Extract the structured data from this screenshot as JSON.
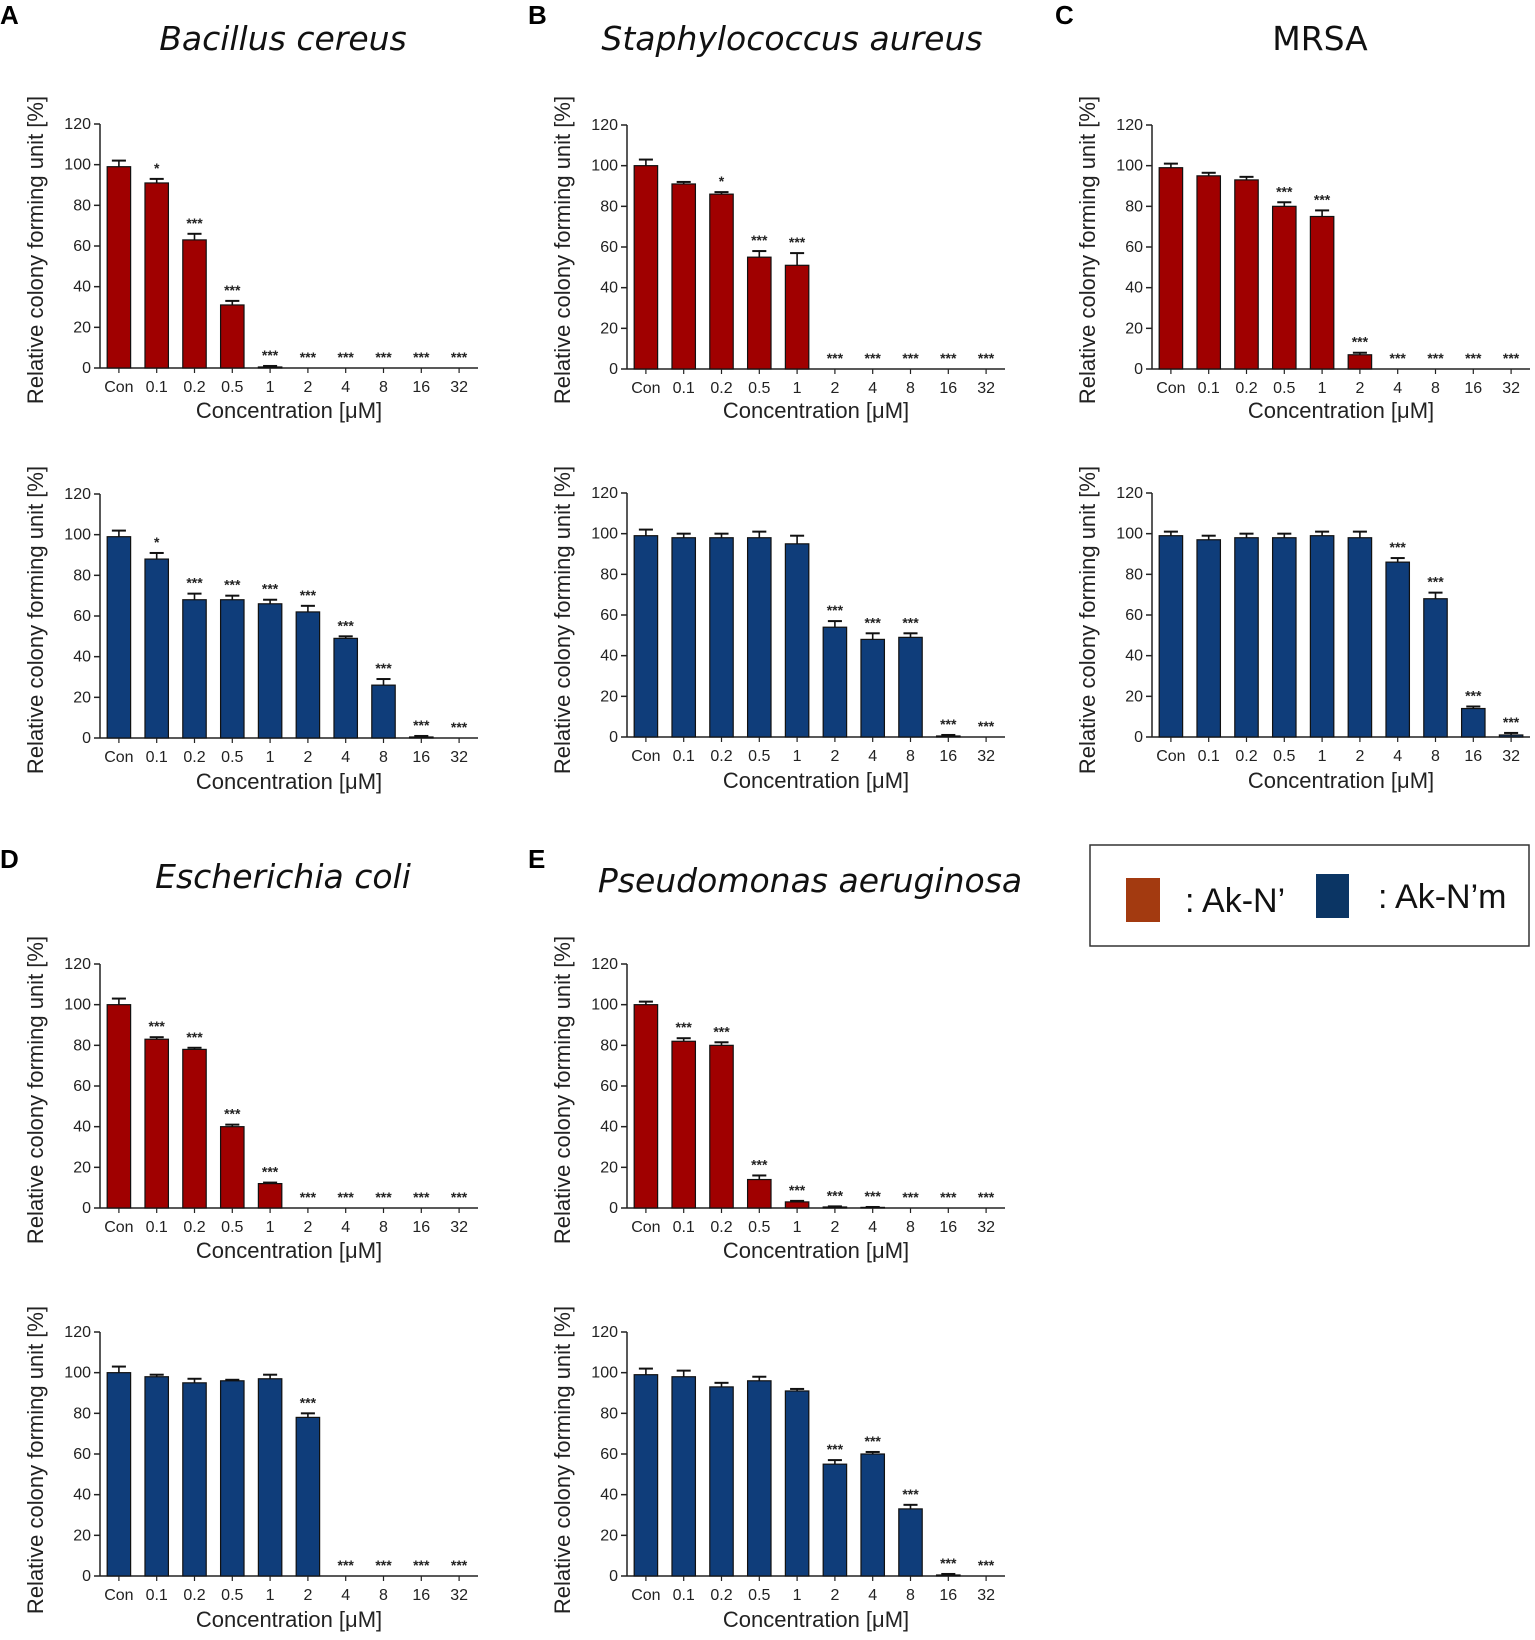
{
  "colors": {
    "ak_n_prime": "#A00000",
    "ak_n_prime_m": "#0F3D7A",
    "legend_red": "#A33A10",
    "legend_blue": "#0B3564"
  },
  "legend": {
    "red_label": ": Ak-N’",
    "blue_label": ": Ak-N’m"
  },
  "panels": [
    {
      "letter": "A",
      "title": "Bacillus cereus",
      "italic": true
    },
    {
      "letter": "B",
      "title": "Staphylococcus aureus",
      "italic": true
    },
    {
      "letter": "C",
      "title": "MRSA",
      "italic": false
    },
    {
      "letter": "D",
      "title": "Escherichia coli",
      "italic": true
    },
    {
      "letter": "E",
      "title": "Pseudomonas aeruginosa",
      "italic": true
    }
  ],
  "chart_data": [
    {
      "type": "bar",
      "panel": "A",
      "series_name": "Ak-N’",
      "color_key": "ak_n_prime",
      "categories": [
        "Con",
        "0.1",
        "0.2",
        "0.5",
        "1",
        "2",
        "4",
        "8",
        "16",
        "32"
      ],
      "values": [
        99,
        91,
        63,
        31,
        0.5,
        0,
        0,
        0,
        0,
        0
      ],
      "errors": [
        3,
        2,
        3,
        2,
        0.5,
        0,
        0,
        0,
        0,
        0
      ],
      "significance": [
        "",
        "*",
        "***",
        "***",
        "***",
        "***",
        "***",
        "***",
        "***",
        "***"
      ],
      "xlabel": "Concentration [μM]",
      "ylabel": "Relative colony forming unit [%]",
      "ylim": [
        0,
        120
      ],
      "yticks": [
        "0",
        "20",
        "40",
        "60",
        "80",
        "100",
        "120"
      ]
    },
    {
      "type": "bar",
      "panel": "A",
      "series_name": "Ak-N’m",
      "color_key": "ak_n_prime_m",
      "categories": [
        "Con",
        "0.1",
        "0.2",
        "0.5",
        "1",
        "2",
        "4",
        "8",
        "16",
        "32"
      ],
      "values": [
        99,
        88,
        68,
        68,
        66,
        62,
        49,
        26,
        0.5,
        0
      ],
      "errors": [
        3,
        3,
        3,
        2,
        2,
        3,
        1,
        3,
        0.5,
        0
      ],
      "significance": [
        "",
        "*",
        "***",
        "***",
        "***",
        "***",
        "***",
        "***",
        "***",
        "***"
      ],
      "xlabel": "Concentration [μM]",
      "ylabel": "Relative colony forming unit [%]",
      "ylim": [
        0,
        120
      ],
      "yticks": [
        "0",
        "20",
        "40",
        "60",
        "80",
        "100",
        "120"
      ]
    },
    {
      "type": "bar",
      "panel": "B",
      "series_name": "Ak-N’",
      "color_key": "ak_n_prime",
      "categories": [
        "Con",
        "0.1",
        "0.2",
        "0.5",
        "1",
        "2",
        "4",
        "8",
        "16",
        "32"
      ],
      "values": [
        100,
        91,
        86,
        55,
        51,
        0,
        0,
        0,
        0,
        0
      ],
      "errors": [
        3,
        1,
        1,
        3,
        6,
        0,
        0,
        0,
        0,
        0
      ],
      "significance": [
        "",
        "",
        "*",
        "***",
        "***",
        "***",
        "***",
        "***",
        "***",
        "***"
      ],
      "xlabel": "Concentration [μM]",
      "ylabel": "Relative colony forming unit [%]",
      "ylim": [
        0,
        120
      ],
      "yticks": [
        "0",
        "20",
        "40",
        "60",
        "80",
        "100",
        "120"
      ]
    },
    {
      "type": "bar",
      "panel": "B",
      "series_name": "Ak-N’m",
      "color_key": "ak_n_prime_m",
      "categories": [
        "Con",
        "0.1",
        "0.2",
        "0.5",
        "1",
        "2",
        "4",
        "8",
        "16",
        "32"
      ],
      "values": [
        99,
        98,
        98,
        98,
        95,
        54,
        48,
        49,
        0.5,
        0
      ],
      "errors": [
        3,
        2,
        2,
        3,
        4,
        3,
        3,
        2,
        0.5,
        0
      ],
      "significance": [
        "",
        "",
        "",
        "",
        "",
        "***",
        "***",
        "***",
        "***",
        "***"
      ],
      "xlabel": "Concentration [μM]",
      "ylabel": "Relative colony forming unit [%]",
      "ylim": [
        0,
        120
      ],
      "yticks": [
        "0",
        "20",
        "40",
        "60",
        "80",
        "100",
        "120"
      ]
    },
    {
      "type": "bar",
      "panel": "C",
      "series_name": "Ak-N’",
      "color_key": "ak_n_prime",
      "categories": [
        "Con",
        "0.1",
        "0.2",
        "0.5",
        "1",
        "2",
        "4",
        "8",
        "16",
        "32"
      ],
      "values": [
        99,
        95,
        93,
        80,
        75,
        7,
        0,
        0,
        0,
        0
      ],
      "errors": [
        2,
        1.5,
        1.5,
        2,
        3,
        1,
        0,
        0,
        0,
        0
      ],
      "significance": [
        "",
        "",
        "",
        "***",
        "***",
        "***",
        "***",
        "***",
        "***",
        "***"
      ],
      "xlabel": "Concentration [μM]",
      "ylabel": "Relative colony forming unit [%]",
      "ylim": [
        0,
        120
      ],
      "yticks": [
        "0",
        "20",
        "40",
        "60",
        "80",
        "100",
        "120"
      ]
    },
    {
      "type": "bar",
      "panel": "C",
      "series_name": "Ak-N’m",
      "color_key": "ak_n_prime_m",
      "categories": [
        "Con",
        "0.1",
        "0.2",
        "0.5",
        "1",
        "2",
        "4",
        "8",
        "16",
        "32"
      ],
      "values": [
        99,
        97,
        98,
        98,
        99,
        98,
        86,
        68,
        14,
        1
      ],
      "errors": [
        2,
        2,
        2,
        2,
        2,
        3,
        2,
        3,
        1,
        1
      ],
      "significance": [
        "",
        "",
        "",
        "",
        "",
        "",
        "***",
        "***",
        "***",
        "***"
      ],
      "xlabel": "Concentration [μM]",
      "ylabel": "Relative colony forming unit [%]",
      "ylim": [
        0,
        120
      ],
      "yticks": [
        "0",
        "20",
        "40",
        "60",
        "80",
        "100",
        "120"
      ]
    },
    {
      "type": "bar",
      "panel": "D",
      "series_name": "Ak-N’",
      "color_key": "ak_n_prime",
      "categories": [
        "Con",
        "0.1",
        "0.2",
        "0.5",
        "1",
        "2",
        "4",
        "8",
        "16",
        "32"
      ],
      "values": [
        100,
        83,
        78,
        40,
        12,
        0,
        0,
        0,
        0,
        0
      ],
      "errors": [
        3,
        1,
        0.8,
        1,
        0.5,
        0,
        0,
        0,
        0,
        0
      ],
      "significance": [
        "",
        "***",
        "***",
        "***",
        "***",
        "***",
        "***",
        "***",
        "***",
        "***"
      ],
      "xlabel": "Concentration [μM]",
      "ylabel": "Relative colony forming unit [%]",
      "ylim": [
        0,
        120
      ],
      "yticks": [
        "0",
        "20",
        "40",
        "60",
        "80",
        "100",
        "120"
      ]
    },
    {
      "type": "bar",
      "panel": "D",
      "series_name": "Ak-N’m",
      "color_key": "ak_n_prime_m",
      "categories": [
        "Con",
        "0.1",
        "0.2",
        "0.5",
        "1",
        "2",
        "4",
        "8",
        "16",
        "32"
      ],
      "values": [
        100,
        98,
        95,
        96,
        97,
        78,
        0,
        0,
        0,
        0
      ],
      "errors": [
        3,
        1,
        2,
        0.5,
        2,
        2,
        0,
        0,
        0,
        0
      ],
      "significance": [
        "",
        "",
        "",
        "",
        "",
        "***",
        "***",
        "***",
        "***",
        "***"
      ],
      "xlabel": "Concentration [μM]",
      "ylabel": "Relative colony forming unit [%]",
      "ylim": [
        0,
        120
      ],
      "yticks": [
        "0",
        "20",
        "40",
        "60",
        "80",
        "100",
        "120"
      ]
    },
    {
      "type": "bar",
      "panel": "E",
      "series_name": "Ak-N’",
      "color_key": "ak_n_prime",
      "categories": [
        "Con",
        "0.1",
        "0.2",
        "0.5",
        "1",
        "2",
        "4",
        "8",
        "16",
        "32"
      ],
      "values": [
        100,
        82,
        80,
        14,
        3,
        0.5,
        0.3,
        0,
        0,
        0
      ],
      "errors": [
        1.5,
        1.5,
        1.5,
        2,
        0.5,
        0.3,
        0.2,
        0,
        0,
        0
      ],
      "significance": [
        "",
        "***",
        "***",
        "***",
        "***",
        "***",
        "***",
        "***",
        "***",
        "***"
      ],
      "xlabel": "Concentration [μM]",
      "ylabel": "Relative colony forming unit [%]",
      "ylim": [
        0,
        120
      ],
      "yticks": [
        "0",
        "20",
        "40",
        "60",
        "80",
        "100",
        "120"
      ]
    },
    {
      "type": "bar",
      "panel": "E",
      "series_name": "Ak-N’m",
      "color_key": "ak_n_prime_m",
      "categories": [
        "Con",
        "0.1",
        "0.2",
        "0.5",
        "1",
        "2",
        "4",
        "8",
        "16",
        "32"
      ],
      "values": [
        99,
        98,
        93,
        96,
        91,
        55,
        60,
        33,
        0.5,
        0
      ],
      "errors": [
        3,
        3,
        2,
        2,
        1,
        2,
        1,
        2,
        0.5,
        0
      ],
      "significance": [
        "",
        "",
        "",
        "",
        "",
        "***",
        "***",
        "***",
        "***",
        "***"
      ],
      "xlabel": "Concentration [μM]",
      "ylabel": "Relative colony forming unit [%]",
      "ylim": [
        0,
        120
      ],
      "yticks": [
        "0",
        "20",
        "40",
        "60",
        "80",
        "100",
        "120"
      ]
    }
  ]
}
